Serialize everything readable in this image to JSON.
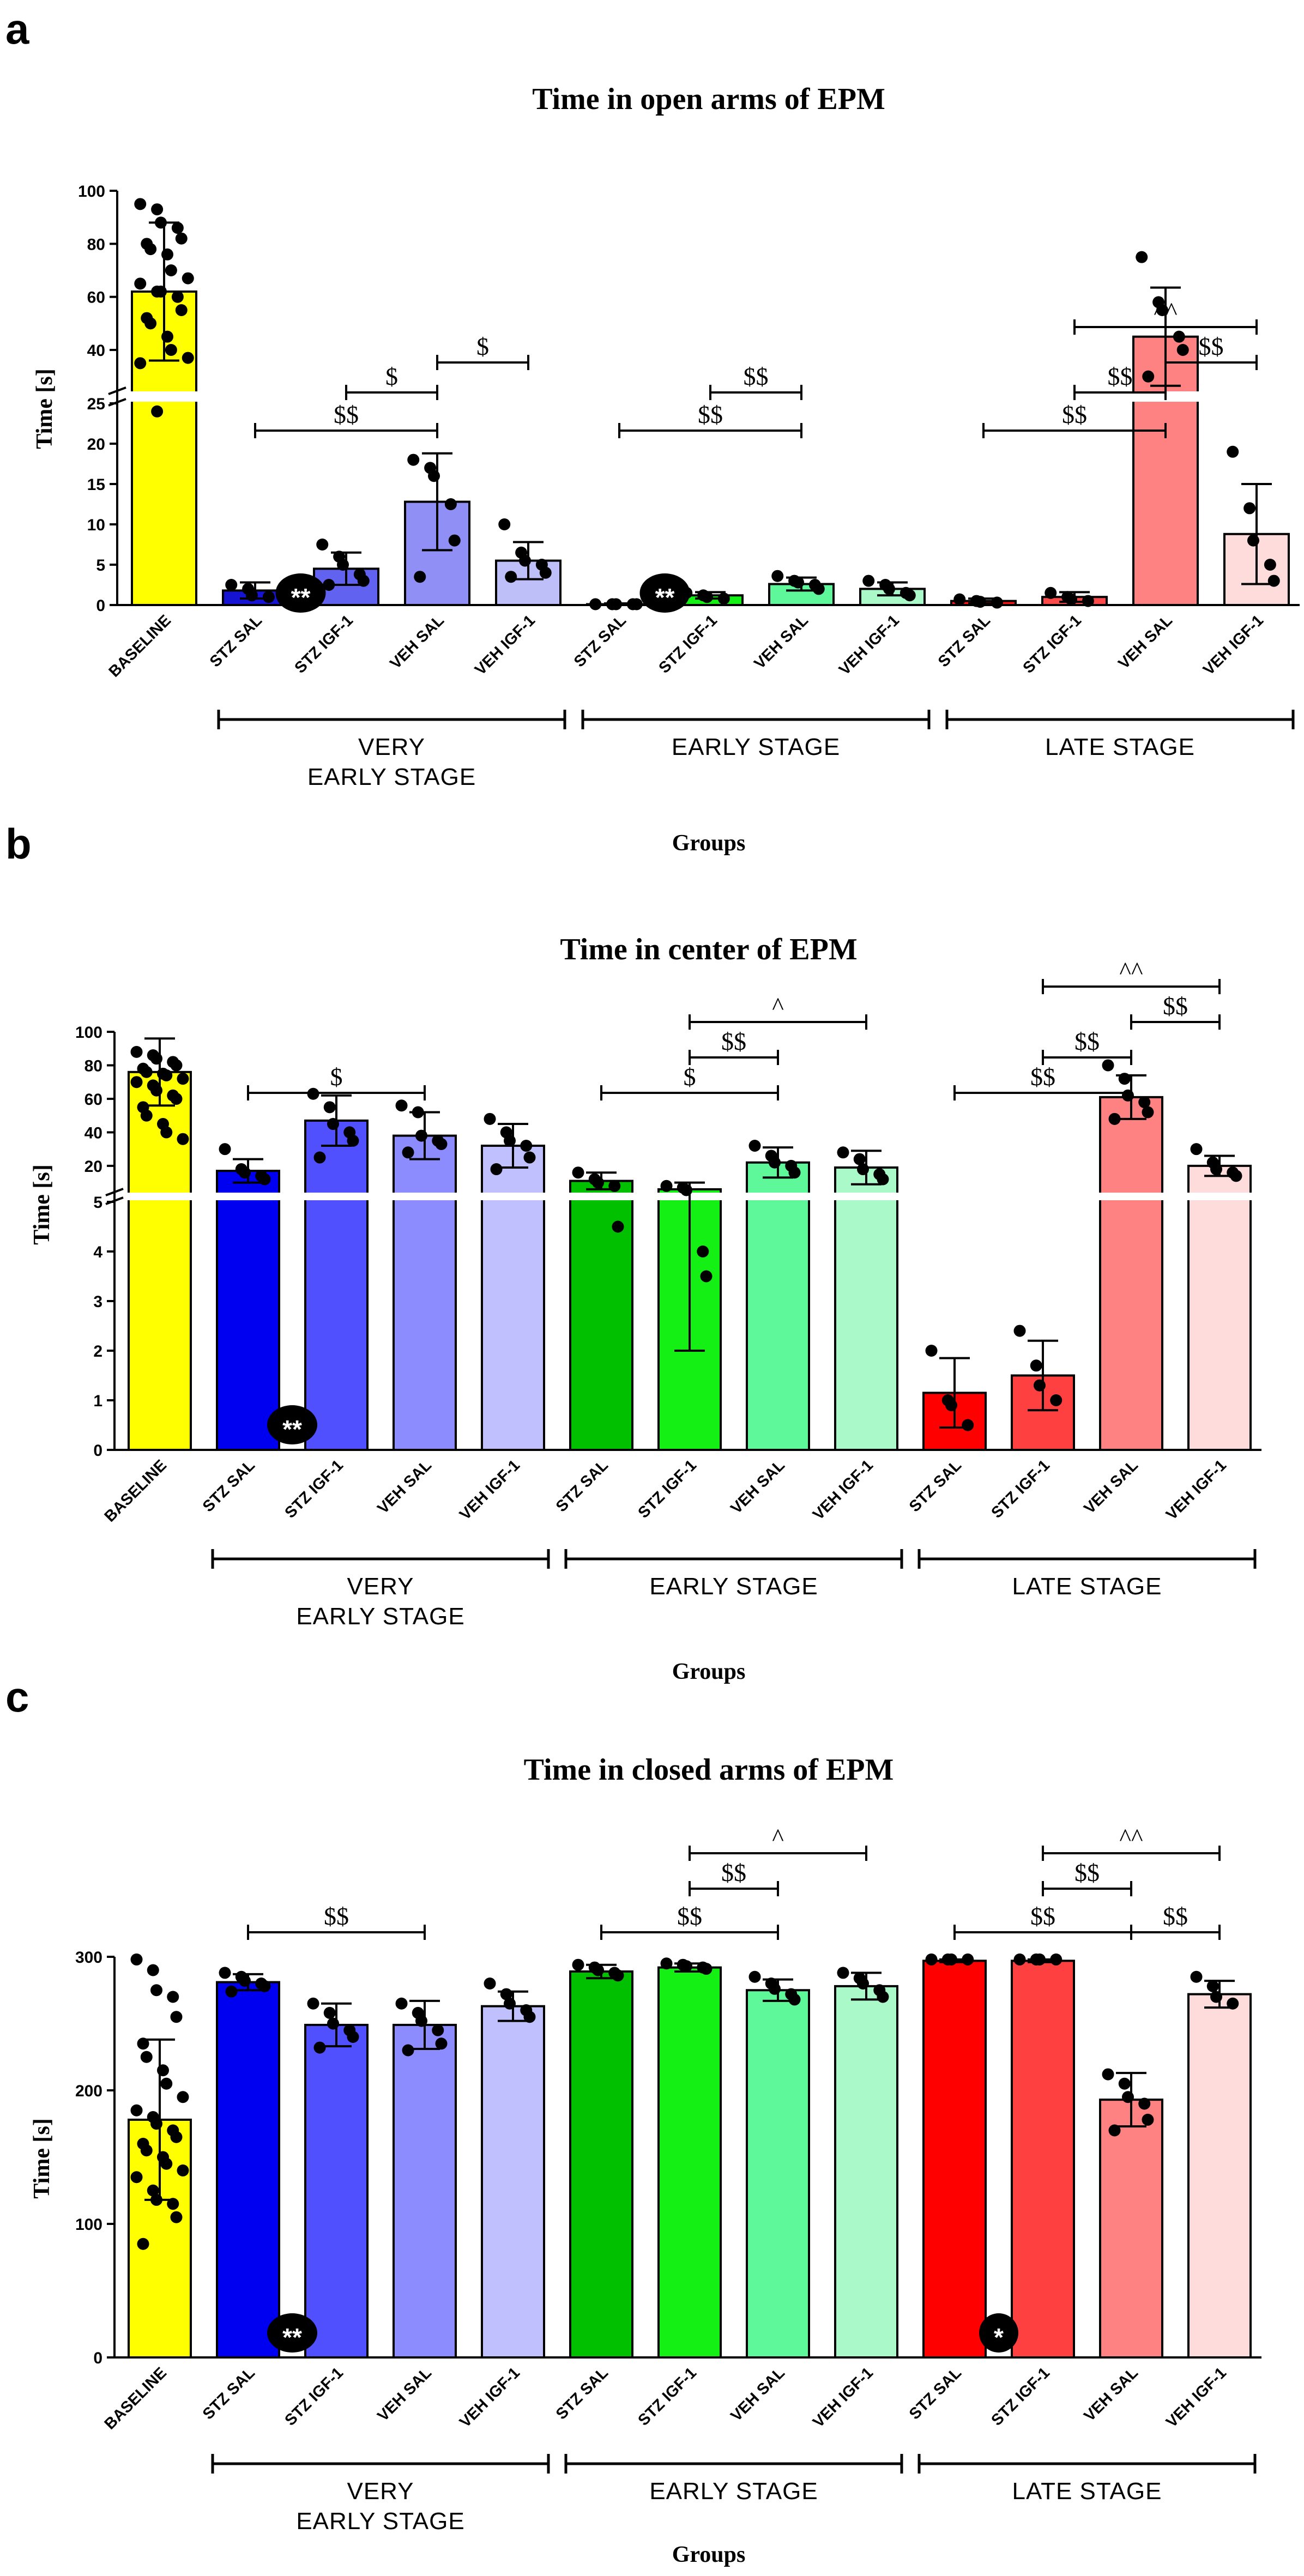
{
  "chart_data": [
    {
      "panel": "a",
      "type": "bar",
      "title": "Time in open arms of EPM",
      "ylabel": "Time [s]",
      "xlabel": "Groups",
      "axis_break": {
        "lower": [
          0,
          25
        ],
        "upper": [
          25,
          100
        ]
      },
      "lower_ticks": [
        0,
        5,
        10,
        15,
        20,
        25
      ],
      "upper_ticks": [
        40,
        60,
        80,
        100
      ],
      "stages": [
        {
          "label_lines": [
            "VERY",
            "EARLY STAGE"
          ]
        },
        {
          "label_lines": [
            "EARLY STAGE"
          ]
        },
        {
          "label_lines": [
            "LATE STAGE"
          ]
        }
      ],
      "categories": [
        "BASELINE",
        "STZ SAL",
        "STZ IGF-1",
        "VEH SAL",
        "VEH IGF-1",
        "STZ SAL",
        "STZ IGF-1",
        "VEH SAL",
        "VEH IGF-1",
        "STZ SAL",
        "STZ IGF-1",
        "VEH SAL",
        "VEH IGF-1"
      ],
      "colors": [
        "#ffff00",
        "#1414d2",
        "#6262f0",
        "#8f8ff6",
        "#bebef9",
        "#00c000",
        "#14f014",
        "#5ef79a",
        "#aaf9c8",
        "#ff1414",
        "#ff4a4a",
        "#ff8282",
        "#ffdcdc"
      ],
      "values": [
        62,
        1.8,
        4.5,
        12.8,
        5.5,
        0.1,
        1.2,
        2.6,
        2.0,
        0.5,
        1.0,
        45,
        8.8
      ],
      "errors": [
        26,
        1.0,
        2.0,
        6.0,
        2.3,
        0.1,
        0.4,
        0.8,
        0.8,
        0.3,
        0.6,
        18.5,
        6.2
      ],
      "points": [
        [
          95,
          93,
          88,
          86,
          82,
          80,
          78,
          76,
          70,
          67,
          65,
          62,
          62,
          60,
          55,
          52,
          50,
          45,
          40,
          37,
          35,
          24
        ],
        [
          2.5,
          2.0,
          1.2,
          1.0
        ],
        [
          7.5,
          6.0,
          5.0,
          3.8,
          3.0,
          2.5
        ],
        [
          18.0,
          17.0,
          16.0,
          12.5,
          8.0,
          3.5
        ],
        [
          10.0,
          6.5,
          5.5,
          5.0,
          4.0,
          3.5
        ],
        [
          0.1,
          0.1,
          0.1,
          0.1,
          0.1
        ],
        [
          1.5,
          1.2,
          1.0,
          0.8
        ],
        [
          3.6,
          3.0,
          2.8,
          2.5,
          2.0
        ],
        [
          3.0,
          2.5,
          2.0,
          1.5,
          1.2
        ],
        [
          0.7,
          0.5,
          0.4,
          0.3
        ],
        [
          1.5,
          1.0,
          0.7,
          0.5
        ],
        [
          75,
          58,
          55,
          45,
          40,
          30
        ],
        [
          19,
          12,
          8,
          5,
          3
        ]
      ],
      "brackets": [
        {
          "from": 1,
          "to": 3,
          "label": "$$",
          "level": 1
        },
        {
          "from": 2,
          "to": 3,
          "label": "$",
          "level": 2
        },
        {
          "from": 3,
          "to": 4,
          "label": "$",
          "level": 3
        },
        {
          "from": 5,
          "to": 7,
          "label": "$$",
          "level": 1
        },
        {
          "from": 6,
          "to": 7,
          "label": "$$",
          "level": 2
        },
        {
          "from": 9,
          "to": 11,
          "label": "$$",
          "level": 1
        },
        {
          "from": 10,
          "to": 11,
          "label": "$$",
          "level": 2
        },
        {
          "from": 11,
          "to": 12,
          "label": "$$",
          "level": 3
        },
        {
          "from": 10,
          "to": 12,
          "label": "^^",
          "level": 4
        }
      ],
      "badges": [
        {
          "between": [
            1,
            2
          ],
          "label": "**"
        },
        {
          "between": [
            5,
            6
          ],
          "label": "**"
        }
      ]
    },
    {
      "panel": "b",
      "type": "bar",
      "title": "Time in center of EPM",
      "ylabel": "Time [s]",
      "xlabel": "Groups",
      "axis_break": {
        "lower": [
          0,
          5
        ],
        "upper": [
          5,
          100
        ]
      },
      "lower_ticks": [
        0,
        1,
        2,
        3,
        4,
        5
      ],
      "upper_ticks": [
        20,
        40,
        60,
        80,
        100
      ],
      "stages": [
        {
          "label_lines": [
            "VERY",
            "EARLY STAGE"
          ]
        },
        {
          "label_lines": [
            "EARLY STAGE"
          ]
        },
        {
          "label_lines": [
            "LATE STAGE"
          ]
        }
      ],
      "categories": [
        "BASELINE",
        "STZ SAL",
        "STZ IGF-1",
        "VEH SAL",
        "VEH IGF-1",
        "STZ SAL",
        "STZ IGF-1",
        "VEH SAL",
        "VEH IGF-1",
        "STZ SAL",
        "STZ IGF-1",
        "VEH SAL",
        "VEH IGF-1"
      ],
      "colors": [
        "#ffff00",
        "#0000f0",
        "#5050ff",
        "#8c8cff",
        "#c0c0ff",
        "#00c000",
        "#14f014",
        "#5ef79a",
        "#aaf9c8",
        "#ff0000",
        "#ff4040",
        "#ff8282",
        "#ffdcdc"
      ],
      "values": [
        76,
        17,
        47,
        38,
        32,
        11,
        6,
        22,
        19,
        1.15,
        1.5,
        61,
        20
      ],
      "errors": [
        20,
        7,
        15,
        14,
        13,
        5,
        4,
        9,
        10,
        0.7,
        0.7,
        13,
        6
      ],
      "points": [
        [
          88,
          86,
          84,
          82,
          80,
          78,
          76,
          75,
          74,
          72,
          70,
          68,
          65,
          62,
          60,
          55,
          50,
          45,
          40,
          36
        ],
        [
          30,
          18,
          16,
          14,
          12
        ],
        [
          63,
          55,
          45,
          40,
          35,
          25
        ],
        [
          56,
          52,
          38,
          35,
          33,
          28
        ],
        [
          48,
          40,
          35,
          32,
          25,
          18
        ],
        [
          16,
          12,
          10,
          8,
          4.5
        ],
        [
          8,
          7,
          5.5,
          4.0,
          3.5
        ],
        [
          32,
          26,
          22,
          20,
          16
        ],
        [
          28,
          24,
          18,
          15,
          12
        ],
        [
          2.0,
          1.0,
          0.9,
          0.5
        ],
        [
          2.4,
          1.7,
          1.3,
          1.0
        ],
        [
          80,
          72,
          62,
          58,
          52,
          48
        ],
        [
          30,
          22,
          18,
          16,
          14
        ]
      ],
      "brackets": [
        {
          "from": 1,
          "to": 3,
          "label": "$",
          "level": 1
        },
        {
          "from": 5,
          "to": 7,
          "label": "$",
          "level": 1
        },
        {
          "from": 6,
          "to": 7,
          "label": "$$",
          "level": 2
        },
        {
          "from": 6,
          "to": 8,
          "label": "^",
          "level": 3
        },
        {
          "from": 9,
          "to": 11,
          "label": "$$",
          "level": 1
        },
        {
          "from": 10,
          "to": 11,
          "label": "$$",
          "level": 2
        },
        {
          "from": 11,
          "to": 12,
          "label": "$$",
          "level": 3
        },
        {
          "from": 10,
          "to": 12,
          "label": "^^",
          "level": 4
        }
      ],
      "badges": [
        {
          "between": [
            1,
            2
          ],
          "label": "**"
        }
      ]
    },
    {
      "panel": "c",
      "type": "bar",
      "title": "Time in closed arms of EPM",
      "ylabel": "Time [s]",
      "xlabel": "Groups",
      "ylim": [
        0,
        300
      ],
      "ticks": [
        0,
        100,
        200,
        300
      ],
      "stages": [
        {
          "label_lines": [
            "VERY",
            "EARLY STAGE"
          ]
        },
        {
          "label_lines": [
            "EARLY STAGE"
          ]
        },
        {
          "label_lines": [
            "LATE STAGE"
          ]
        }
      ],
      "categories": [
        "BASELINE",
        "STZ SAL",
        "STZ IGF-1",
        "VEH SAL",
        "VEH IGF-1",
        "STZ SAL",
        "STZ IGF-1",
        "VEH SAL",
        "VEH IGF-1",
        "STZ SAL",
        "STZ IGF-1",
        "VEH SAL",
        "VEH IGF-1"
      ],
      "colors": [
        "#ffff00",
        "#0000f0",
        "#5050ff",
        "#8c8cff",
        "#c0c0ff",
        "#00c000",
        "#14f014",
        "#5ef79a",
        "#aaf9c8",
        "#ff0000",
        "#ff4040",
        "#ff8282",
        "#ffdcdc"
      ],
      "values": [
        178,
        281,
        249,
        249,
        263,
        289,
        292,
        275,
        278,
        297,
        297,
        193,
        272
      ],
      "errors": [
        60,
        6,
        16,
        18,
        11,
        5,
        3,
        8,
        10,
        1,
        1,
        20,
        10
      ],
      "points": [
        [
          298,
          290,
          275,
          270,
          255,
          235,
          225,
          215,
          205,
          195,
          185,
          180,
          175,
          170,
          165,
          160,
          155,
          150,
          145,
          140,
          135,
          125,
          118,
          115,
          105,
          85
        ],
        [
          288,
          285,
          282,
          280,
          278,
          274
        ],
        [
          265,
          258,
          250,
          245,
          240,
          232
        ],
        [
          265,
          258,
          252,
          245,
          235,
          230
        ],
        [
          280,
          272,
          265,
          260,
          255
        ],
        [
          294,
          292,
          290,
          288,
          286
        ],
        [
          295,
          294,
          293,
          292,
          291
        ],
        [
          285,
          280,
          276,
          272,
          268
        ],
        [
          288,
          284,
          280,
          275,
          270
        ],
        [
          298,
          298,
          298,
          298
        ],
        [
          298,
          298,
          298,
          298
        ],
        [
          212,
          205,
          195,
          190,
          178,
          170
        ],
        [
          285,
          278,
          270,
          265
        ]
      ],
      "brackets": [
        {
          "from": 1,
          "to": 3,
          "label": "$$",
          "level": 1
        },
        {
          "from": 5,
          "to": 7,
          "label": "$$",
          "level": 1
        },
        {
          "from": 6,
          "to": 7,
          "label": "$$",
          "level": 2
        },
        {
          "from": 6,
          "to": 8,
          "label": "^",
          "level": 3
        },
        {
          "from": 9,
          "to": 11,
          "label": "$$",
          "level": 1
        },
        {
          "from": 10,
          "to": 11,
          "label": "$$",
          "level": 2
        },
        {
          "from": 11,
          "to": 12,
          "label": "$$",
          "level": 1
        },
        {
          "from": 10,
          "to": 12,
          "label": "^^",
          "level": 3
        }
      ],
      "badges": [
        {
          "between": [
            1,
            2
          ],
          "label": "**"
        },
        {
          "between": [
            9,
            10
          ],
          "label": "*"
        }
      ]
    }
  ],
  "panels": {
    "a": {
      "letter": "a"
    },
    "b": {
      "letter": "b"
    },
    "c": {
      "letter": "c"
    }
  }
}
